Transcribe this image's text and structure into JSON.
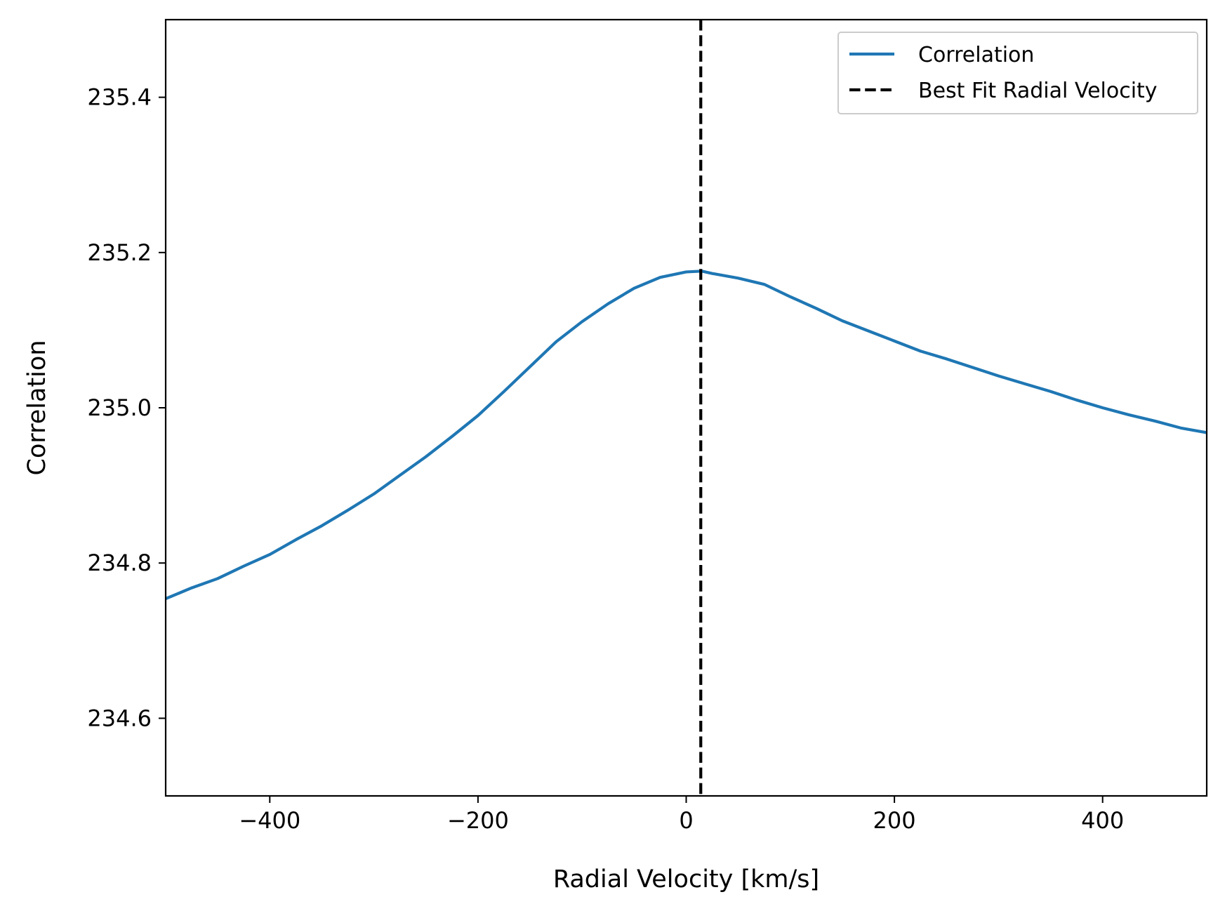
{
  "chart_data": {
    "type": "line",
    "title": "",
    "xlabel": "Radial Velocity [km/s]",
    "ylabel": "Correlation",
    "xlim": [
      -500,
      500
    ],
    "ylim": [
      234.5,
      235.5
    ],
    "xticks": [
      -400,
      -200,
      0,
      200,
      400
    ],
    "xtick_labels": [
      "−400",
      "−200",
      "0",
      "200",
      "400"
    ],
    "yticks": [
      234.6,
      234.8,
      235.0,
      235.2,
      235.4
    ],
    "ytick_labels": [
      "234.6",
      "234.8",
      "235.0",
      "235.2",
      "235.4"
    ],
    "grid": false,
    "legend_position": "top-right",
    "series": [
      {
        "name": "Correlation",
        "color": "#1f77b4",
        "style": "solid",
        "x": [
          -500,
          -475,
          -450,
          -425,
          -400,
          -375,
          -350,
          -325,
          -300,
          -275,
          -250,
          -225,
          -200,
          -175,
          -150,
          -125,
          -100,
          -75,
          -50,
          -25,
          0,
          15,
          25,
          50,
          75,
          100,
          125,
          150,
          175,
          200,
          225,
          250,
          275,
          300,
          325,
          350,
          375,
          400,
          425,
          450,
          475,
          500
        ],
        "y": [
          234.754,
          234.768,
          234.78,
          234.796,
          234.811,
          234.83,
          234.848,
          234.868,
          234.889,
          234.913,
          234.937,
          234.963,
          234.99,
          235.021,
          235.053,
          235.085,
          235.111,
          235.134,
          235.154,
          235.168,
          235.175,
          235.176,
          235.173,
          235.167,
          235.159,
          235.143,
          235.128,
          235.112,
          235.099,
          235.086,
          235.073,
          235.063,
          235.052,
          235.041,
          235.031,
          235.021,
          235.01,
          235.0,
          234.991,
          234.983,
          234.974,
          234.968
        ]
      },
      {
        "name": "Best Fit Radial Velocity",
        "color": "#000000",
        "style": "dashed",
        "vline_x": 14
      }
    ]
  }
}
